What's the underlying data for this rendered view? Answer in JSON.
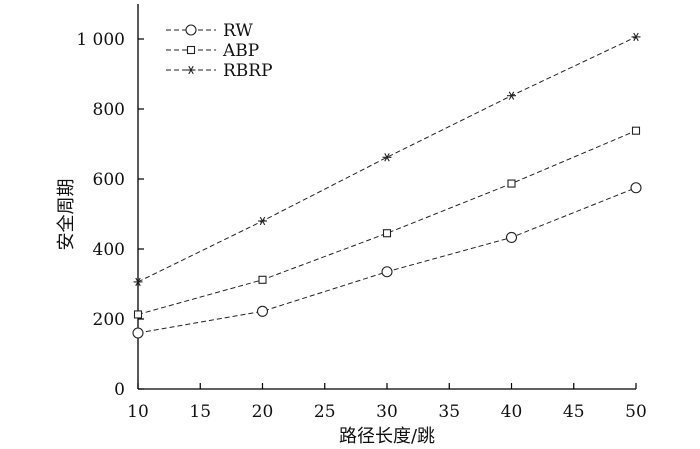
{
  "chart_data": {
    "type": "line",
    "title": "",
    "xlabel": "路径长度/跳",
    "ylabel": "安全周期",
    "x": [
      10,
      20,
      30,
      40,
      50
    ],
    "xlim": [
      10,
      50
    ],
    "ylim": [
      0,
      1100
    ],
    "xticks": [
      "10",
      "15",
      "20",
      "25",
      "30",
      "35",
      "40",
      "45",
      "50"
    ],
    "yticks": [
      "0",
      "200",
      "400",
      "600",
      "800",
      "1 000"
    ],
    "grid": false,
    "legend_position": "top-left",
    "series": [
      {
        "name": "RW",
        "marker": "circle",
        "values": [
          160,
          222,
          335,
          433,
          575
        ]
      },
      {
        "name": "ABP",
        "marker": "square",
        "values": [
          213,
          312,
          445,
          587,
          738
        ]
      },
      {
        "name": "RBRP",
        "marker": "star",
        "values": [
          306,
          480,
          662,
          838,
          1006
        ]
      }
    ],
    "line_color": "#222222",
    "line_style": "dashed"
  }
}
